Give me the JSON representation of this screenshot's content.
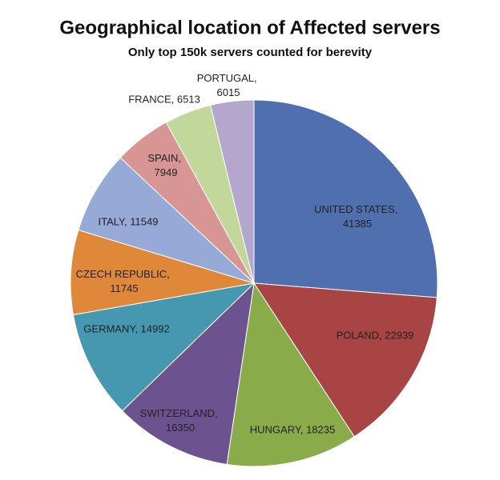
{
  "chart_data": {
    "type": "pie",
    "title": "Geographical location of Affected servers",
    "subtitle": "Only top 150k servers counted for berevity",
    "values": [
      41385,
      22939,
      18235,
      16350,
      14992,
      11745,
      11549,
      7949,
      6513,
      6015
    ],
    "value_labels": [
      "UNITED STATES, 41385",
      "POLAND, 22939",
      "HUNGARY, 18235",
      "SWITZERLAND, 16350",
      "GERMANY, 14992",
      "CZECH REPUBLIC, 11745",
      "ITALY, 11549",
      "SPAIN, 7949",
      "FRANCE, 6513",
      "PORTUGAL, 6015"
    ],
    "colors": [
      "#4f6fae",
      "#a84443",
      "#8aab4a",
      "#6d5290",
      "#4598b0",
      "#e0883a",
      "#97a9d6",
      "#d79694",
      "#c2d89a",
      "#b4a6cc"
    ]
  }
}
